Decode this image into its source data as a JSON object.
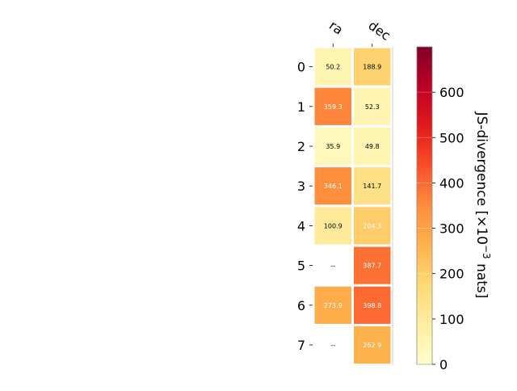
{
  "chart_data": {
    "type": "heatmap",
    "columns": [
      "ra",
      "dec"
    ],
    "rows": [
      "0",
      "1",
      "2",
      "3",
      "4",
      "5",
      "6",
      "7"
    ],
    "values": [
      [
        50.2,
        188.9
      ],
      [
        359.3,
        52.3
      ],
      [
        35.9,
        49.8
      ],
      [
        346.1,
        141.7
      ],
      [
        100.9,
        204.3
      ],
      [
        null,
        387.7
      ],
      [
        273.9,
        398.8
      ],
      [
        null,
        262.9
      ]
    ],
    "missing_label": "--",
    "colorbar": {
      "label": "JS-divergence [×10⁻³ nats]",
      "label_main": "JS-divergence [×10",
      "label_exp": "−3",
      "label_tail": " nats]",
      "range": [
        0,
        700
      ],
      "ticks": [
        "0",
        "100",
        "200",
        "300",
        "400",
        "500",
        "600"
      ],
      "colormap": "YlOrRd"
    }
  }
}
